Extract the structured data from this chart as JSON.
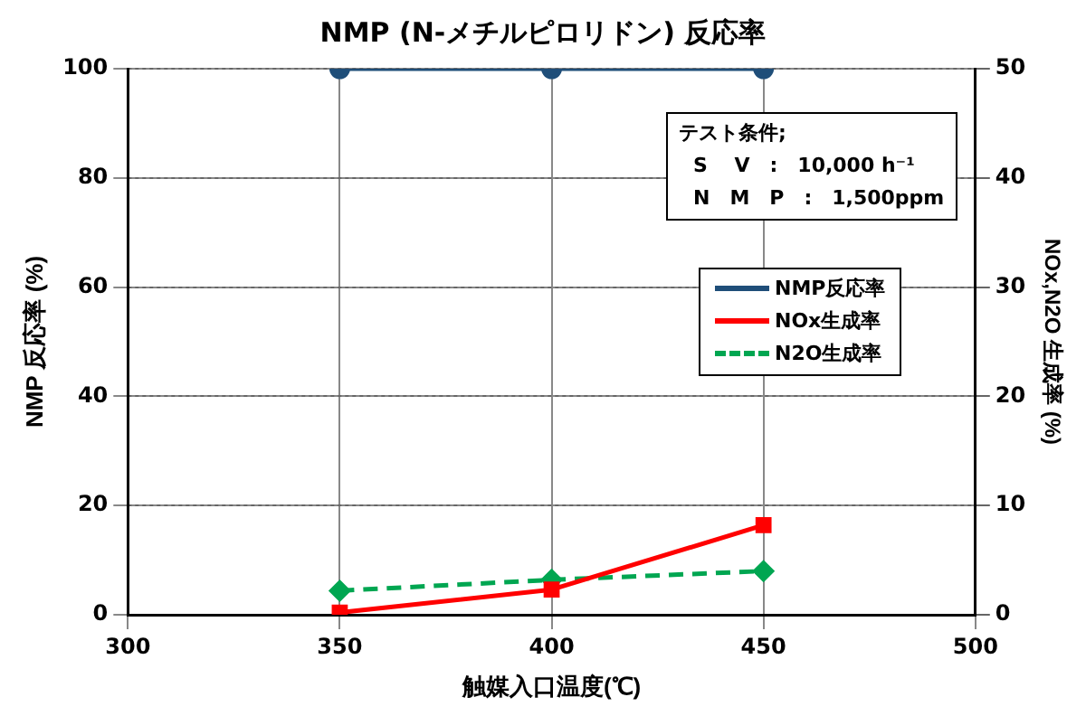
{
  "chart_data": {
    "type": "line",
    "title": "NMP (N-メチルピロリドン) 反応率",
    "xlabel": "触媒入口温度(℃)",
    "ylabel": "NMP 反応率 (%)",
    "y2label": "NOx,N2O 生成率 (%)",
    "x": [
      350,
      400,
      450
    ],
    "series": [
      {
        "name": "NMP反応率",
        "color": "#1f4e79",
        "values": [
          100,
          100,
          100
        ],
        "marker": "circle",
        "line_style": "solid"
      },
      {
        "name": "NOx生成率",
        "color": "#ff0000",
        "values": [
          0.2,
          2.3,
          8.2
        ],
        "axis": "y2",
        "marker": "square",
        "line_style": "solid"
      },
      {
        "name": "N2O生成率",
        "color": "#00a651",
        "values": [
          2.2,
          3.2,
          4.0
        ],
        "axis": "y2",
        "marker": "diamond",
        "line_style": "dashed"
      }
    ],
    "xlim": [
      300,
      500
    ],
    "xticks": [
      300,
      350,
      400,
      450,
      500
    ],
    "ylim": [
      0,
      100
    ],
    "yticks": [
      0,
      20,
      40,
      60,
      80,
      100
    ],
    "y2lim": [
      0,
      50
    ],
    "y2ticks": [
      0,
      10,
      20,
      30,
      40,
      50
    ],
    "grid": true,
    "legend": "right",
    "annotations": [
      "テスト条件;",
      "S　 V　:　10,000 h⁻¹",
      "N　M　P　:　1,500ppm"
    ]
  }
}
